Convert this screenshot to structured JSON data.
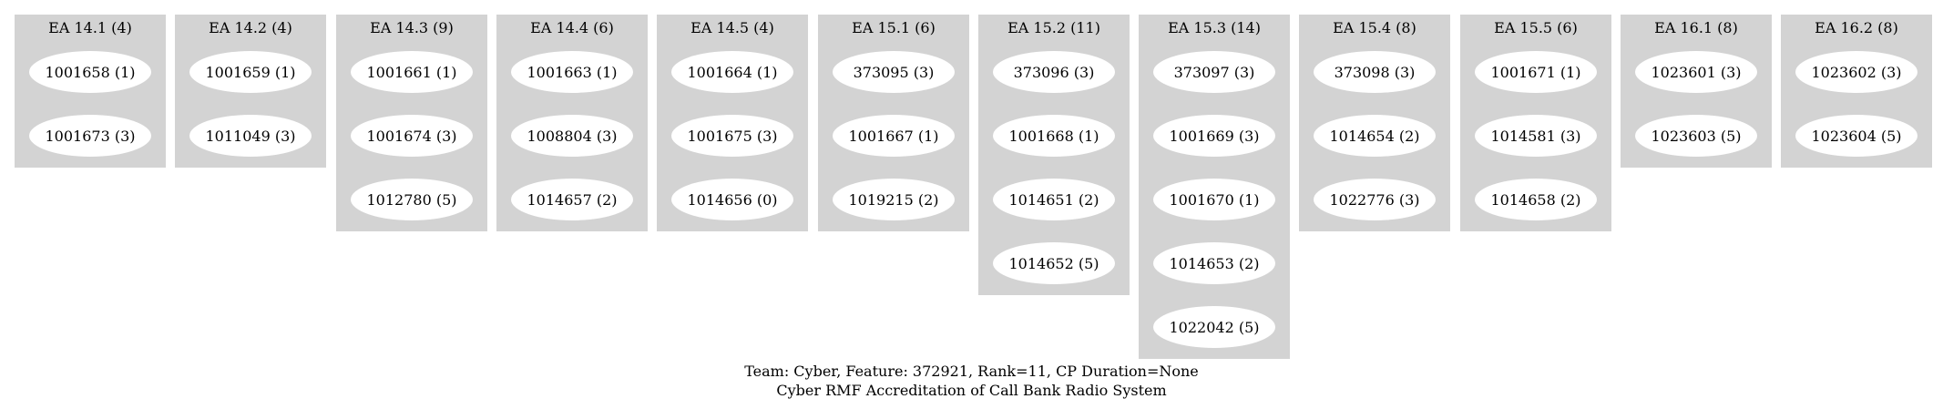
{
  "clusters": [
    {
      "title": "EA 14.1 (4)",
      "nodes": [
        "1001658 (1)",
        "1001673 (3)"
      ]
    },
    {
      "title": "EA 14.2 (4)",
      "nodes": [
        "1001659 (1)",
        "1011049 (3)"
      ]
    },
    {
      "title": "EA 14.3 (9)",
      "nodes": [
        "1001661 (1)",
        "1001674 (3)",
        "1012780 (5)"
      ]
    },
    {
      "title": "EA 14.4 (6)",
      "nodes": [
        "1001663 (1)",
        "1008804 (3)",
        "1014657 (2)"
      ]
    },
    {
      "title": "EA 14.5 (4)",
      "nodes": [
        "1001664 (1)",
        "1001675 (3)",
        "1014656 (0)"
      ]
    },
    {
      "title": "EA 15.1 (6)",
      "nodes": [
        "373095 (3)",
        "1001667 (1)",
        "1019215 (2)"
      ]
    },
    {
      "title": "EA 15.2 (11)",
      "nodes": [
        "373096 (3)",
        "1001668 (1)",
        "1014651 (2)",
        "1014652 (5)"
      ]
    },
    {
      "title": "EA 15.3 (14)",
      "nodes": [
        "373097 (3)",
        "1001669 (3)",
        "1001670 (1)",
        "1014653 (2)",
        "1022042 (5)"
      ]
    },
    {
      "title": "EA 15.4 (8)",
      "nodes": [
        "373098 (3)",
        "1014654 (2)",
        "1022776 (3)"
      ]
    },
    {
      "title": "EA 15.5 (6)",
      "nodes": [
        "1001671 (1)",
        "1014581 (3)",
        "1014658 (2)"
      ]
    },
    {
      "title": "EA 16.1 (8)",
      "nodes": [
        "1023601 (3)",
        "1023603 (5)"
      ]
    },
    {
      "title": "EA 16.2 (8)",
      "nodes": [
        "1023602 (3)",
        "1023604 (5)"
      ]
    }
  ],
  "caption": {
    "line1": "Team: Cyber, Feature: 372921, Rank=11, CP Duration=None",
    "line2": "Cyber RMF Accreditation of Call Bank Radio System"
  },
  "colors": {
    "cluster_fill": "#d3d3d3",
    "node_fill": "#ffffff",
    "text": "#000000"
  }
}
